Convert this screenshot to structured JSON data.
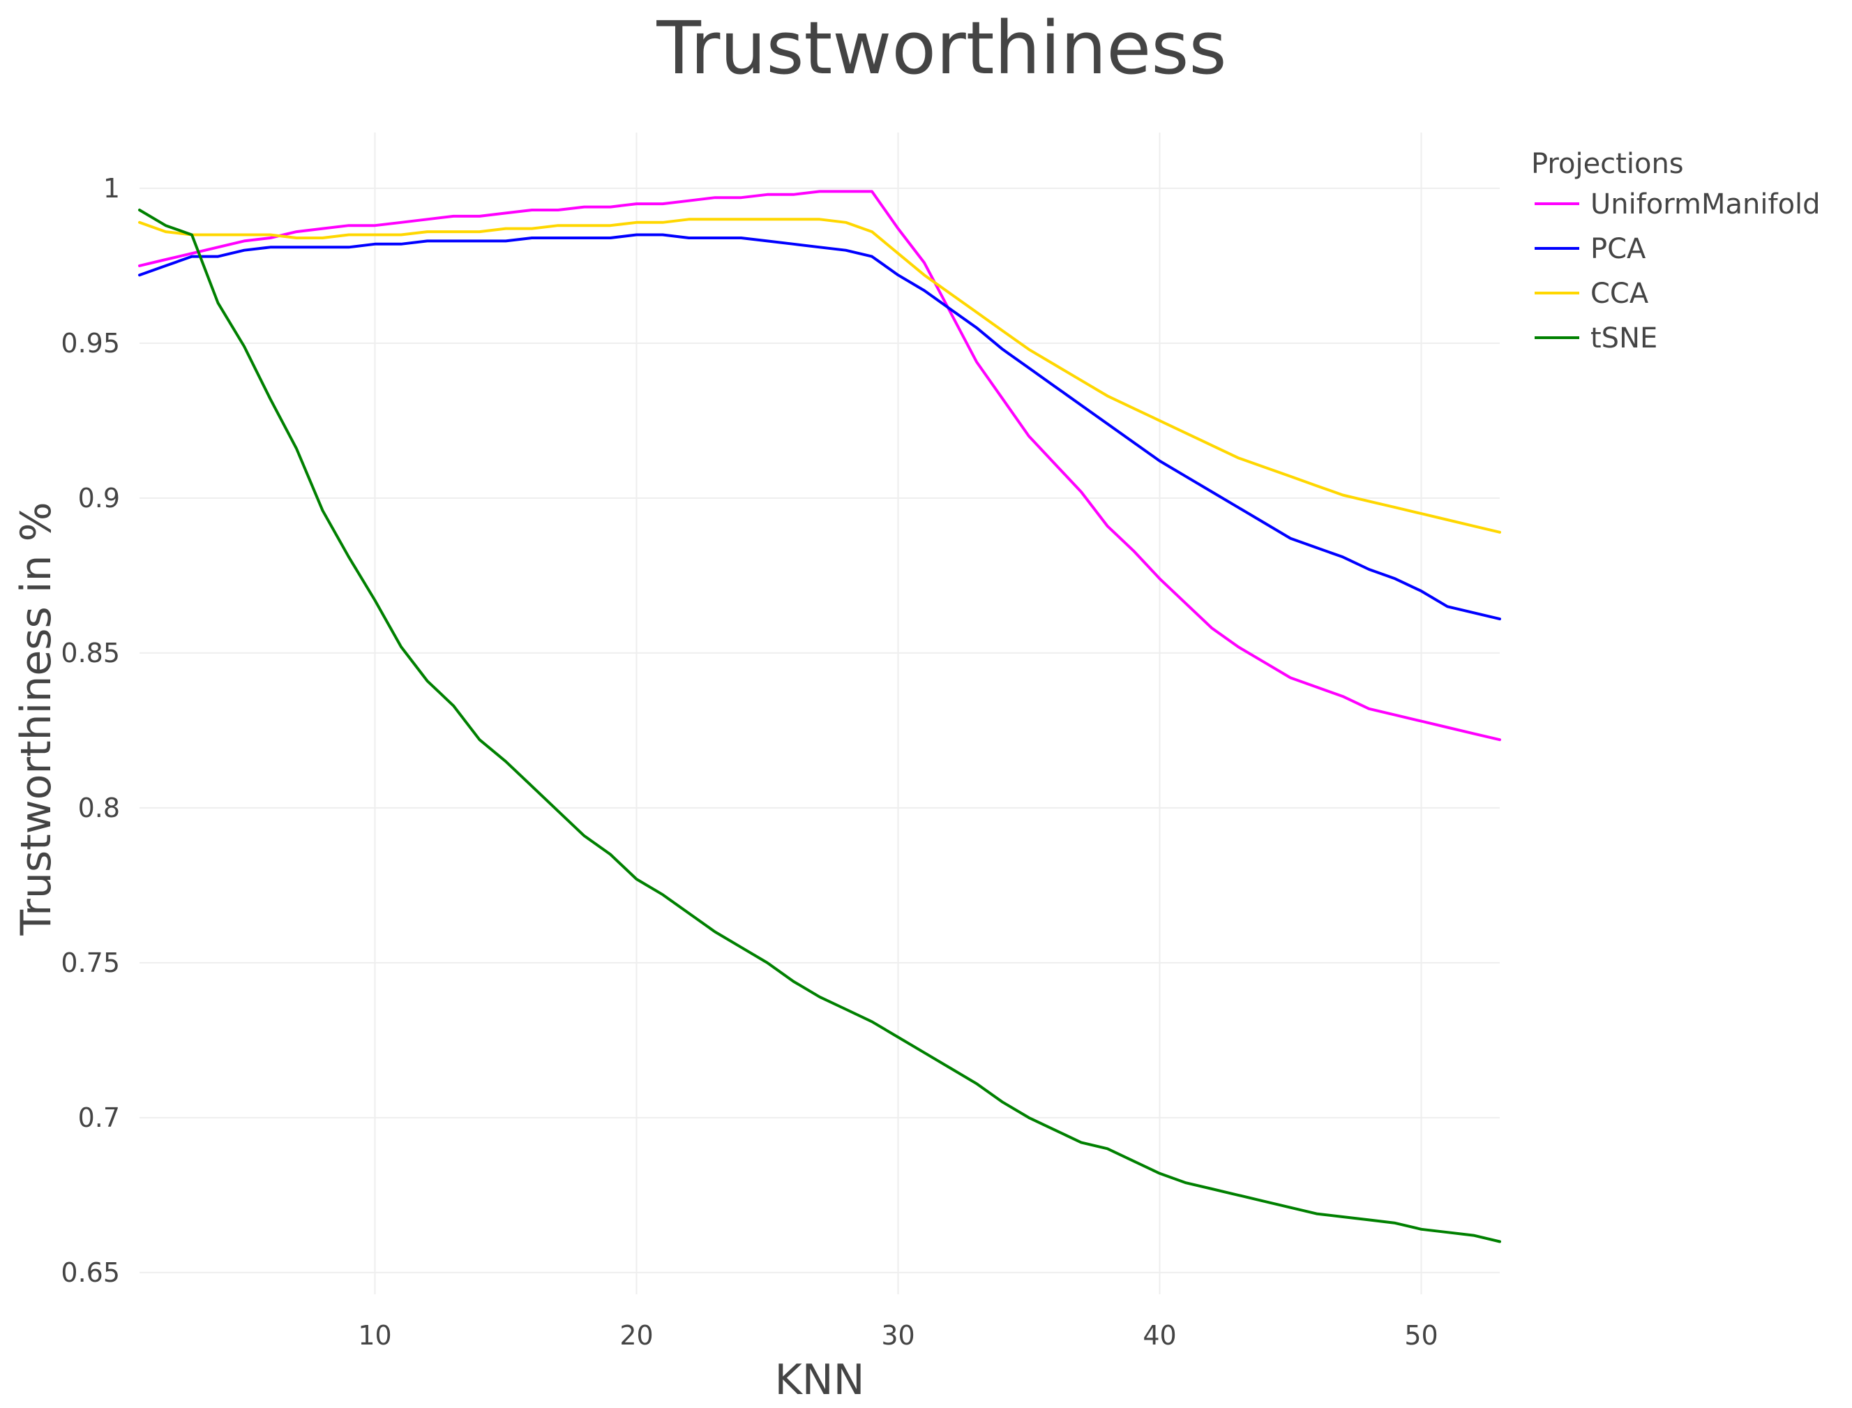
{
  "chart_data": {
    "type": "line",
    "title": "Trustworthiness",
    "xlabel": "KNN",
    "ylabel": "Trustworthiness in %",
    "xlim": [
      1,
      53
    ],
    "ylim": [
      0.643,
      1.018
    ],
    "x_ticks": [
      10,
      20,
      30,
      40,
      50
    ],
    "y_ticks": [
      0.65,
      0.7,
      0.75,
      0.8,
      0.85,
      0.9,
      0.95,
      1
    ],
    "grid": true,
    "legend": {
      "title": "Projections",
      "placement": "top-right, outside plot"
    },
    "x": [
      1,
      2,
      3,
      4,
      5,
      6,
      7,
      8,
      9,
      10,
      11,
      12,
      13,
      14,
      15,
      16,
      17,
      18,
      19,
      20,
      21,
      22,
      23,
      24,
      25,
      26,
      27,
      28,
      29,
      30,
      31,
      32,
      33,
      34,
      35,
      36,
      37,
      38,
      39,
      40,
      41,
      42,
      43,
      44,
      45,
      46,
      47,
      48,
      49,
      50,
      51,
      52,
      53
    ],
    "series": [
      {
        "name": "UniformManifold",
        "color": "#ff00ff",
        "values": [
          0.975,
          0.977,
          0.979,
          0.981,
          0.983,
          0.984,
          0.986,
          0.987,
          0.988,
          0.988,
          0.989,
          0.99,
          0.991,
          0.991,
          0.992,
          0.993,
          0.993,
          0.994,
          0.994,
          0.995,
          0.995,
          0.996,
          0.997,
          0.997,
          0.998,
          0.998,
          0.999,
          0.999,
          0.999,
          0.987,
          0.976,
          0.96,
          0.944,
          0.932,
          0.92,
          0.911,
          0.902,
          0.891,
          0.883,
          0.874,
          0.866,
          0.858,
          0.852,
          0.847,
          0.842,
          0.839,
          0.836,
          0.832,
          0.83,
          0.828,
          0.826,
          0.824,
          0.822
        ]
      },
      {
        "name": "PCA",
        "color": "#0000ff",
        "values": [
          0.972,
          0.975,
          0.978,
          0.978,
          0.98,
          0.981,
          0.981,
          0.981,
          0.981,
          0.982,
          0.982,
          0.983,
          0.983,
          0.983,
          0.983,
          0.984,
          0.984,
          0.984,
          0.984,
          0.985,
          0.985,
          0.984,
          0.984,
          0.984,
          0.983,
          0.982,
          0.981,
          0.98,
          0.978,
          0.972,
          0.967,
          0.961,
          0.955,
          0.948,
          0.942,
          0.936,
          0.93,
          0.924,
          0.918,
          0.912,
          0.907,
          0.902,
          0.897,
          0.892,
          0.887,
          0.884,
          0.881,
          0.877,
          0.874,
          0.87,
          0.865,
          0.863,
          0.861
        ]
      },
      {
        "name": "CCA",
        "color": "#ffd700",
        "values": [
          0.989,
          0.986,
          0.985,
          0.985,
          0.985,
          0.985,
          0.984,
          0.984,
          0.985,
          0.985,
          0.985,
          0.986,
          0.986,
          0.986,
          0.987,
          0.987,
          0.988,
          0.988,
          0.988,
          0.989,
          0.989,
          0.99,
          0.99,
          0.99,
          0.99,
          0.99,
          0.99,
          0.989,
          0.986,
          0.979,
          0.972,
          0.966,
          0.96,
          0.954,
          0.948,
          0.943,
          0.938,
          0.933,
          0.929,
          0.925,
          0.921,
          0.917,
          0.913,
          0.91,
          0.907,
          0.904,
          0.901,
          0.899,
          0.897,
          0.895,
          0.893,
          0.891,
          0.889
        ]
      },
      {
        "name": "tSNE",
        "color": "#008000",
        "values": [
          0.993,
          0.988,
          0.985,
          0.963,
          0.949,
          0.932,
          0.916,
          0.896,
          0.881,
          0.867,
          0.852,
          0.841,
          0.833,
          0.822,
          0.815,
          0.807,
          0.799,
          0.791,
          0.785,
          0.777,
          0.772,
          0.766,
          0.76,
          0.755,
          0.75,
          0.744,
          0.739,
          0.735,
          0.731,
          0.726,
          0.721,
          0.716,
          0.711,
          0.705,
          0.7,
          0.696,
          0.692,
          0.69,
          0.686,
          0.682,
          0.679,
          0.677,
          0.675,
          0.673,
          0.671,
          0.669,
          0.668,
          0.667,
          0.666,
          0.664,
          0.663,
          0.662,
          0.66
        ]
      }
    ]
  }
}
